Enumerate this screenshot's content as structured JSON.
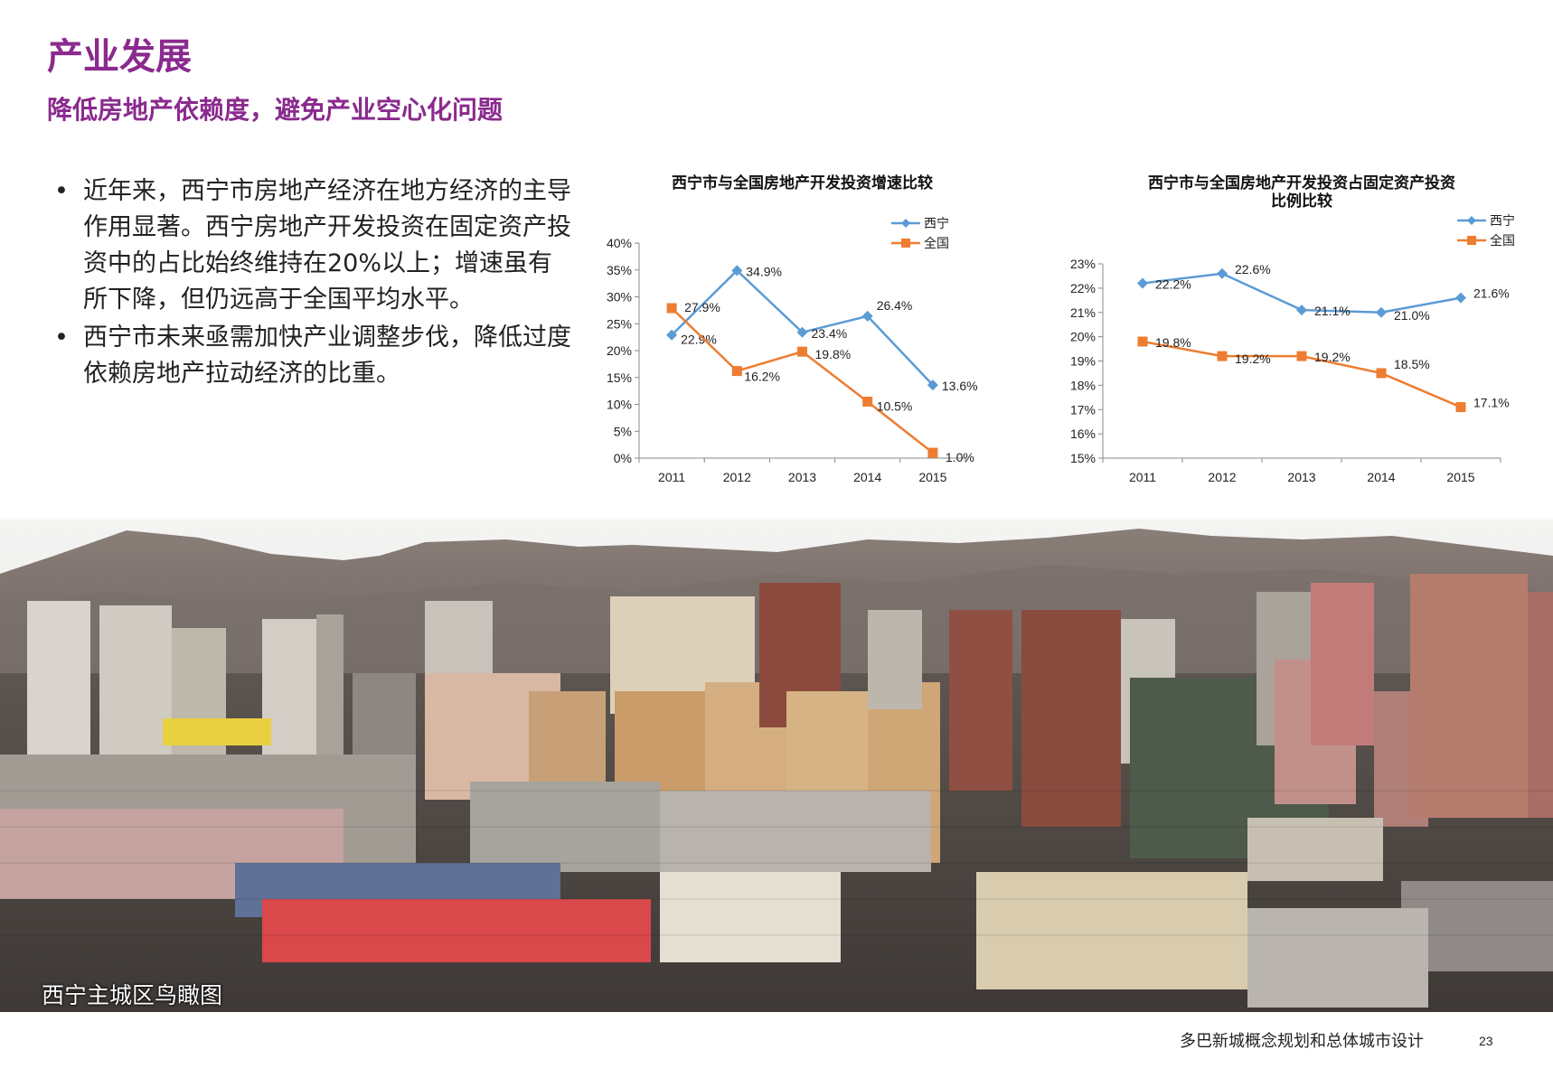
{
  "header": {
    "title": "产业发展",
    "subtitle": "降低房地产依赖度，避免产业空心化问题"
  },
  "bullets": [
    "近年来，西宁市房地产经济在地方经济的主导作用显著。西宁房地产开发投资在固定资产投资中的占比始终维持在20%以上；增速虽有所下降，但仍远高于全国平均水平。",
    "西宁市未来亟需加快产业调整步伐，降低过度依赖房地产拉动经济的比重。"
  ],
  "bullet_symbol": "•",
  "chart_data": [
    {
      "type": "line",
      "title": "西宁市与全国房地产开发投资增速比较",
      "x": [
        "2011",
        "2012",
        "2013",
        "2014",
        "2015"
      ],
      "y_ticks": [
        "0%",
        "5%",
        "10%",
        "15%",
        "20%",
        "25%",
        "30%",
        "35%",
        "40%"
      ],
      "ylim": [
        0,
        40
      ],
      "legend_position": "top-right",
      "grid": false,
      "series": [
        {
          "name": "西宁",
          "values": [
            22.9,
            34.9,
            23.4,
            26.4,
            13.6
          ],
          "labels": [
            "22.9%",
            "34.9%",
            "23.4%",
            "26.4%",
            "13.6%"
          ],
          "color": "#5b9bd5",
          "marker": "diamond"
        },
        {
          "name": "全国",
          "values": [
            27.9,
            16.2,
            19.8,
            10.5,
            1.0
          ],
          "labels": [
            "27.9%",
            "16.2%",
            "19.8%",
            "10.5%",
            "1.0%"
          ],
          "color": "#ed7d31",
          "marker": "square"
        }
      ]
    },
    {
      "type": "line",
      "title": "西宁市与全国房地产开发投资占固定资产投资比例比较",
      "title_lines": [
        "西宁市与全国房地产开发投资占固定资产投资",
        "比例比较"
      ],
      "x": [
        "2011",
        "2012",
        "2013",
        "2014",
        "2015"
      ],
      "y_ticks": [
        "15%",
        "16%",
        "17%",
        "18%",
        "19%",
        "20%",
        "21%",
        "22%",
        "23%"
      ],
      "ylim": [
        15,
        23
      ],
      "legend_position": "top-right",
      "grid": false,
      "series": [
        {
          "name": "西宁",
          "values": [
            22.2,
            22.6,
            21.1,
            21.0,
            21.6
          ],
          "labels": [
            "22.2%",
            "22.6%",
            "21.1%",
            "21.0%",
            "21.6%"
          ],
          "color": "#5b9bd5",
          "marker": "diamond"
        },
        {
          "name": "全国",
          "values": [
            19.8,
            19.2,
            19.2,
            18.5,
            17.1
          ],
          "labels": [
            "19.8%",
            "19.2%",
            "19.2%",
            "18.5%",
            "17.1%"
          ],
          "color": "#ed7d31",
          "marker": "square"
        }
      ]
    }
  ],
  "photo": {
    "caption": "西宁主城区鸟瞰图"
  },
  "footer": {
    "text": "多巴新城概念规划和总体城市设计",
    "page_number": "23"
  }
}
